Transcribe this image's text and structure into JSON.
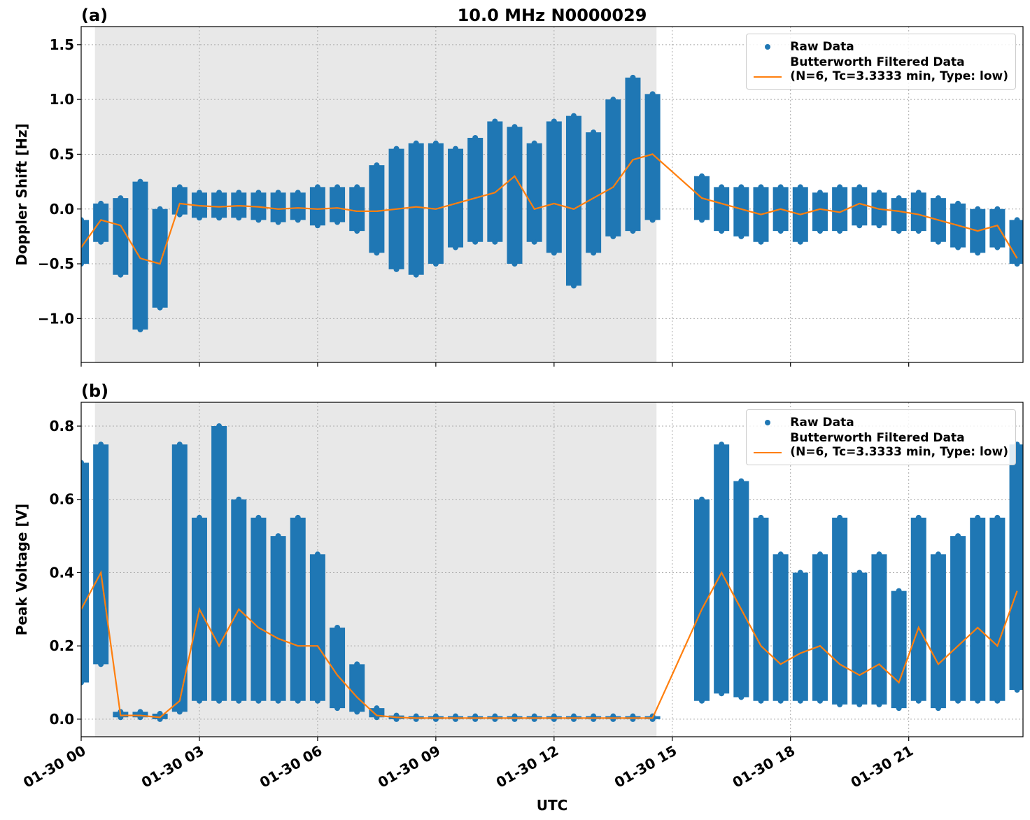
{
  "chart_data": [
    {
      "type": "scatter-line",
      "title": "10.0 MHz N0000029",
      "panel_label": "(a)",
      "ylabel": "Doppler Shift [Hz]",
      "xlim": [
        0,
        23.9
      ],
      "ylim": [
        -1.4,
        1.665
      ],
      "shade": [
        0.35,
        14.6
      ],
      "grid": true,
      "legend": "upper right",
      "xticks": [
        {
          "value": 0,
          "label": "01-30 00"
        },
        {
          "value": 3,
          "label": "01-30 03"
        },
        {
          "value": 6,
          "label": "01-30 06"
        },
        {
          "value": 9,
          "label": "01-30 09"
        },
        {
          "value": 12,
          "label": "01-30 12"
        },
        {
          "value": 15,
          "label": "01-30 15"
        },
        {
          "value": 18,
          "label": "01-30 18"
        },
        {
          "value": 21,
          "label": "01-30 21"
        }
      ],
      "yticks": [
        {
          "value": -1.0,
          "label": "−1.0"
        },
        {
          "value": -0.5,
          "label": "−0.5"
        },
        {
          "value": 0.0,
          "label": "0.0"
        },
        0.5,
        {
          "value": 1.0,
          "label": "1.0"
        },
        1.5
      ],
      "x": [
        0,
        0.5,
        1,
        1.5,
        2,
        2.5,
        3,
        3.5,
        4,
        4.5,
        5,
        5.5,
        6,
        6.5,
        7,
        7.5,
        8,
        8.5,
        9,
        9.5,
        10,
        10.5,
        11,
        11.5,
        12,
        12.5,
        13,
        13.5,
        14,
        14.5,
        15.75,
        16.25,
        16.75,
        17.25,
        17.75,
        18.25,
        18.75,
        19.25,
        19.75,
        20.25,
        20.75,
        21.25,
        21.75,
        22.25,
        22.75,
        23.25,
        23.75
      ],
      "series": [
        {
          "name": "Raw Data",
          "color": "#1f77b4",
          "values": [
            [
              -0.5,
              -0.1
            ],
            [
              -0.3,
              0.05
            ],
            [
              -0.6,
              0.1
            ],
            [
              -1.1,
              0.25
            ],
            [
              -0.9,
              0.0
            ],
            [
              -0.05,
              0.2
            ],
            [
              -0.08,
              0.15
            ],
            [
              -0.08,
              0.15
            ],
            [
              -0.08,
              0.15
            ],
            [
              -0.1,
              0.15
            ],
            [
              -0.12,
              0.15
            ],
            [
              -0.1,
              0.15
            ],
            [
              -0.15,
              0.2
            ],
            [
              -0.12,
              0.2
            ],
            [
              -0.2,
              0.2
            ],
            [
              -0.4,
              0.4
            ],
            [
              -0.55,
              0.55
            ],
            [
              -0.6,
              0.6
            ],
            [
              -0.5,
              0.6
            ],
            [
              -0.35,
              0.55
            ],
            [
              -0.3,
              0.65
            ],
            [
              -0.3,
              0.8
            ],
            [
              -0.5,
              0.75
            ],
            [
              -0.3,
              0.6
            ],
            [
              -0.4,
              0.8
            ],
            [
              -0.7,
              0.85
            ],
            [
              -0.4,
              0.7
            ],
            [
              -0.25,
              1.0
            ],
            [
              -0.2,
              1.2
            ],
            [
              -0.1,
              1.05
            ],
            [
              -0.1,
              0.3
            ],
            [
              -0.2,
              0.2
            ],
            [
              -0.25,
              0.2
            ],
            [
              -0.3,
              0.2
            ],
            [
              -0.2,
              0.2
            ],
            [
              -0.3,
              0.2
            ],
            [
              -0.2,
              0.15
            ],
            [
              -0.2,
              0.2
            ],
            [
              -0.15,
              0.2
            ],
            [
              -0.15,
              0.15
            ],
            [
              -0.2,
              0.1
            ],
            [
              -0.2,
              0.15
            ],
            [
              -0.3,
              0.1
            ],
            [
              -0.35,
              0.05
            ],
            [
              -0.4,
              0.0
            ],
            [
              -0.35,
              0.0
            ],
            [
              -0.5,
              -0.1
            ]
          ]
        },
        {
          "name": "Butterworth Filtered Data\n(N=6, Tc=3.3333 min, Type: low)",
          "color": "#ff7f0e",
          "values": [
            -0.35,
            -0.1,
            -0.15,
            -0.45,
            -0.5,
            0.05,
            0.03,
            0.02,
            0.03,
            0.02,
            0.0,
            0.01,
            0.0,
            0.01,
            -0.02,
            -0.02,
            0.0,
            0.02,
            0.0,
            0.05,
            0.1,
            0.15,
            0.3,
            0.0,
            0.05,
            0.0,
            0.1,
            0.2,
            0.45,
            0.5,
            0.1,
            0.05,
            0.0,
            -0.05,
            0.0,
            -0.05,
            0.0,
            -0.03,
            0.05,
            0.0,
            -0.02,
            -0.05,
            -0.1,
            -0.15,
            -0.2,
            -0.15,
            -0.45
          ]
        }
      ]
    },
    {
      "type": "scatter-line",
      "panel_label": "(b)",
      "ylabel": "Peak Voltage [V]",
      "xlabel": "UTC",
      "xlim": [
        0,
        23.9
      ],
      "ylim": [
        -0.048,
        0.865
      ],
      "shade": [
        0.35,
        14.6
      ],
      "grid": true,
      "legend": "upper right",
      "xticks": [
        {
          "value": 0,
          "label": "01-30 00"
        },
        {
          "value": 3,
          "label": "01-30 03"
        },
        {
          "value": 6,
          "label": "01-30 06"
        },
        {
          "value": 9,
          "label": "01-30 09"
        },
        {
          "value": 12,
          "label": "01-30 12"
        },
        {
          "value": 15,
          "label": "01-30 15"
        },
        {
          "value": 18,
          "label": "01-30 18"
        },
        {
          "value": 21,
          "label": "01-30 21"
        }
      ],
      "yticks": [
        {
          "value": 0.0,
          "label": "0.0"
        },
        0.2,
        0.4,
        0.6,
        0.8
      ],
      "x": [
        0,
        0.5,
        1,
        1.5,
        2,
        2.5,
        3,
        3.5,
        4,
        4.5,
        5,
        5.5,
        6,
        6.5,
        7,
        7.5,
        8,
        8.5,
        9,
        9.5,
        10,
        10.5,
        11,
        11.5,
        12,
        12.5,
        13,
        13.5,
        14,
        14.5,
        15.75,
        16.25,
        16.75,
        17.25,
        17.75,
        18.25,
        18.75,
        19.25,
        19.75,
        20.25,
        20.75,
        21.25,
        21.75,
        22.25,
        22.75,
        23.25,
        23.75
      ],
      "series": [
        {
          "name": "Raw Data",
          "color": "#1f77b4",
          "values": [
            [
              0.1,
              0.7
            ],
            [
              0.15,
              0.75
            ],
            [
              0.005,
              0.02
            ],
            [
              0.005,
              0.02
            ],
            [
              0.0,
              0.015
            ],
            [
              0.02,
              0.75
            ],
            [
              0.05,
              0.55
            ],
            [
              0.05,
              0.8
            ],
            [
              0.05,
              0.6
            ],
            [
              0.05,
              0.55
            ],
            [
              0.05,
              0.5
            ],
            [
              0.05,
              0.55
            ],
            [
              0.05,
              0.45
            ],
            [
              0.03,
              0.25
            ],
            [
              0.02,
              0.15
            ],
            [
              0.005,
              0.03
            ],
            [
              0.0,
              0.01
            ],
            [
              0.0,
              0.008
            ],
            [
              0.0,
              0.008
            ],
            [
              0.0,
              0.008
            ],
            [
              0.0,
              0.008
            ],
            [
              0.0,
              0.008
            ],
            [
              0.0,
              0.008
            ],
            [
              0.0,
              0.008
            ],
            [
              0.0,
              0.008
            ],
            [
              0.0,
              0.008
            ],
            [
              0.0,
              0.008
            ],
            [
              0.0,
              0.008
            ],
            [
              0.0,
              0.008
            ],
            [
              0.0,
              0.008
            ],
            [
              0.05,
              0.6
            ],
            [
              0.07,
              0.75
            ],
            [
              0.06,
              0.65
            ],
            [
              0.05,
              0.55
            ],
            [
              0.05,
              0.45
            ],
            [
              0.05,
              0.4
            ],
            [
              0.05,
              0.45
            ],
            [
              0.04,
              0.55
            ],
            [
              0.04,
              0.4
            ],
            [
              0.04,
              0.45
            ],
            [
              0.03,
              0.35
            ],
            [
              0.05,
              0.55
            ],
            [
              0.03,
              0.45
            ],
            [
              0.05,
              0.5
            ],
            [
              0.05,
              0.55
            ],
            [
              0.05,
              0.55
            ],
            [
              0.08,
              0.75
            ]
          ]
        },
        {
          "name": "Butterworth Filtered Data\n(N=6, Tc=3.3333 min, Type: low)",
          "color": "#ff7f0e",
          "values": [
            0.3,
            0.4,
            0.01,
            0.01,
            0.005,
            0.05,
            0.3,
            0.2,
            0.3,
            0.25,
            0.22,
            0.2,
            0.2,
            0.12,
            0.06,
            0.01,
            0.005,
            0.003,
            0.003,
            0.003,
            0.003,
            0.003,
            0.003,
            0.003,
            0.003,
            0.003,
            0.003,
            0.003,
            0.003,
            0.003,
            0.3,
            0.4,
            0.3,
            0.2,
            0.15,
            0.18,
            0.2,
            0.15,
            0.12,
            0.15,
            0.1,
            0.25,
            0.15,
            0.2,
            0.25,
            0.2,
            0.35
          ]
        }
      ]
    }
  ]
}
